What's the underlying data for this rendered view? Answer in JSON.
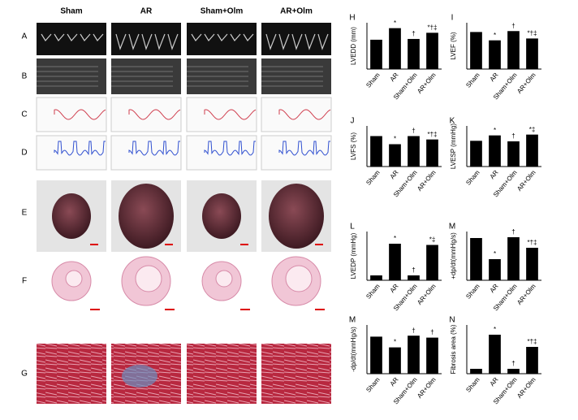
{
  "columns": [
    "Sham",
    "AR",
    "Sham+Olm",
    "AR+Olm"
  ],
  "rows": [
    "A",
    "B",
    "C",
    "D",
    "E",
    "F",
    "G"
  ],
  "chart_data": [
    {
      "type": "bar",
      "panel": "H",
      "ylabel": "LVEDD (mm)",
      "categories": [
        "Sham",
        "AR",
        "Sham+Olm",
        "AR+Olm"
      ],
      "values": [
        3.8,
        5.3,
        3.9,
        4.7
      ],
      "annotations": [
        null,
        "*",
        "†",
        "*†‡"
      ],
      "color": "#000000",
      "ylim": [
        0,
        6
      ]
    },
    {
      "type": "bar",
      "panel": "I",
      "ylabel": "LVEF (%)",
      "categories": [
        "Sham",
        "AR",
        "Sham+Olm",
        "AR+Olm"
      ],
      "values": [
        80,
        62,
        82,
        66
      ],
      "annotations": [
        null,
        "*",
        "†",
        "*†‡"
      ],
      "color": "#000000",
      "ylim": [
        0,
        100
      ]
    },
    {
      "type": "bar",
      "panel": "J",
      "ylabel": "LVFS (%)",
      "categories": [
        "Sham",
        "AR",
        "Sham+Olm",
        "AR+Olm"
      ],
      "values": [
        45,
        33,
        45,
        40
      ],
      "annotations": [
        null,
        "*",
        "†",
        "*†‡"
      ],
      "color": "#000000",
      "ylim": [
        0,
        60
      ]
    },
    {
      "type": "bar",
      "panel": "K",
      "ylabel": "LVESP (mmHg)",
      "categories": [
        "Sham",
        "AR",
        "Sham+Olm",
        "AR+Olm"
      ],
      "values": [
        95,
        115,
        93,
        118
      ],
      "annotations": [
        null,
        "*",
        "†",
        "*‡"
      ],
      "color": "#000000",
      "ylim": [
        0,
        150
      ]
    },
    {
      "type": "bar",
      "panel": "L",
      "ylabel": "LVEDP (mmHg)",
      "categories": [
        "Sham",
        "AR",
        "Sham+Olm",
        "AR+Olm"
      ],
      "values": [
        2,
        15,
        2,
        14.5
      ],
      "annotations": [
        null,
        "*",
        "†",
        "*‡"
      ],
      "color": "#000000",
      "ylim": [
        0,
        20
      ]
    },
    {
      "type": "bar",
      "panel": "M",
      "ylabel": "+dp/dt(mmHg/s)",
      "categories": [
        "Sham",
        "AR",
        "Sham+Olm",
        "AR+Olm"
      ],
      "values": [
        5200,
        2600,
        5300,
        4000
      ],
      "annotations": [
        null,
        "*",
        "†",
        "*†‡"
      ],
      "color": "#000000",
      "ylim": [
        0,
        6000
      ]
    },
    {
      "type": "bar",
      "panel": "M",
      "ylabel": "-dp/dt(mmHg/s)",
      "categories": [
        "Sham",
        "AR",
        "Sham+Olm",
        "AR+Olm"
      ],
      "values": [
        3800,
        2700,
        3900,
        3700
      ],
      "annotations": [
        null,
        "*",
        "†",
        "†"
      ],
      "color": "#000000",
      "ylim": [
        0,
        5000
      ]
    },
    {
      "type": "bar",
      "panel": "N",
      "ylabel": "Fibrosis area (%)",
      "categories": [
        "Sham",
        "AR",
        "Sham+Olm",
        "AR+Olm"
      ],
      "values": [
        1,
        8,
        1,
        5.5
      ],
      "annotations": [
        null,
        "*",
        "†",
        "*†‡"
      ],
      "color": "#000000",
      "ylim": [
        0,
        10
      ]
    }
  ]
}
